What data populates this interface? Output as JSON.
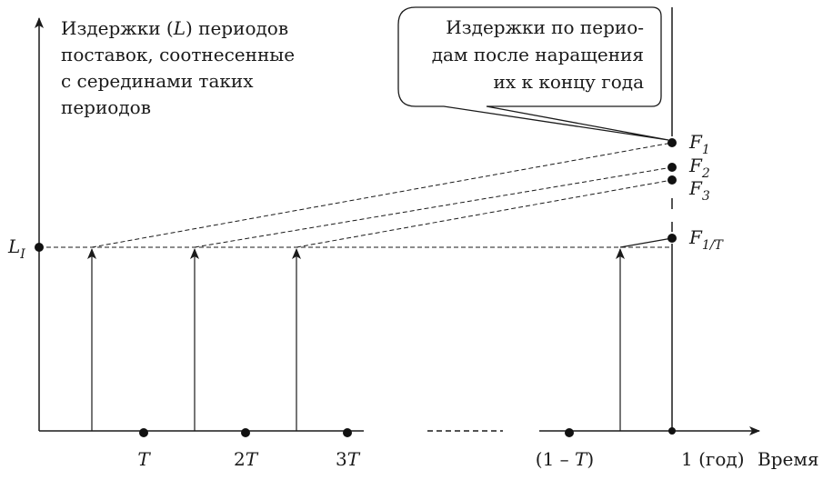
{
  "diagram": {
    "y_axis_caption": {
      "line1_before": "Издержки (",
      "line1_var": "L",
      "line1_after": ") периодов",
      "line2": "поставок, соотнесенные",
      "line3": "с серединами таких",
      "line4": "периодов"
    },
    "callout": {
      "line1": "Издержки по перио-",
      "line2": "дам после наращения",
      "line3": "их к концу года"
    },
    "y_point_label": {
      "main": "L",
      "sub": "I"
    },
    "right_labels": [
      {
        "main": "F",
        "sub": "1"
      },
      {
        "main": "F",
        "sub": "2"
      },
      {
        "main": "F",
        "sub": "3"
      },
      {
        "main": "F",
        "sub": "1/T"
      }
    ],
    "x_labels": {
      "t1": "T",
      "t2_prefix": "2",
      "t2_var": "T",
      "t3_prefix": "3",
      "t3_var": "T",
      "t_last_prefix": "(1 – ",
      "t_last_var": "T",
      "t_last_suffix": ")",
      "year": "1 (год)",
      "axis_name": "Время"
    }
  }
}
